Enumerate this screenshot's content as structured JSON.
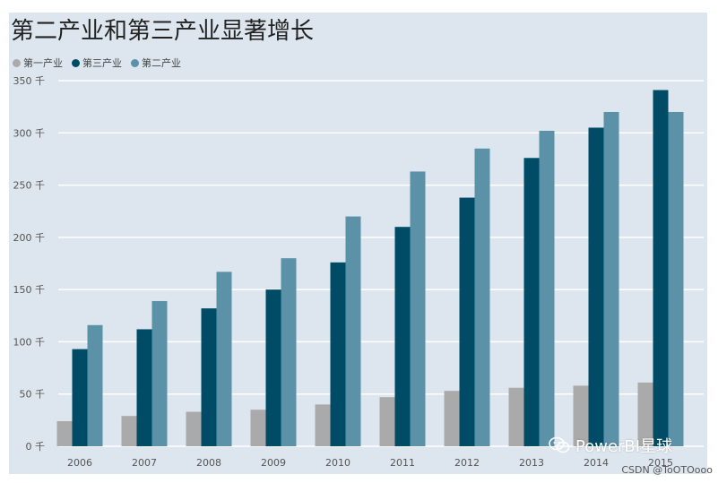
{
  "chart_data": {
    "type": "bar",
    "title": "第二产业和第三产业显著增长",
    "categories": [
      "2006",
      "2007",
      "2008",
      "2009",
      "2010",
      "2011",
      "2012",
      "2013",
      "2014",
      "2015"
    ],
    "series": [
      {
        "name": "第一产业",
        "color": "#aaaaaa",
        "values": [
          24,
          29,
          33,
          35,
          40,
          47,
          53,
          56,
          58,
          61
        ]
      },
      {
        "name": "第三产业",
        "color": "#004c66",
        "values": [
          93,
          112,
          132,
          150,
          176,
          210,
          238,
          276,
          305,
          341
        ]
      },
      {
        "name": "第二产业",
        "color": "#5b92a8",
        "values": [
          116,
          139,
          167,
          180,
          220,
          263,
          285,
          302,
          320,
          320
        ]
      }
    ],
    "yticks": [
      "0 千",
      "50 千",
      "100 千",
      "150 千",
      "200 千",
      "250 千",
      "300 千",
      "350 千"
    ],
    "ytick_values": [
      0,
      50,
      100,
      150,
      200,
      250,
      300,
      350
    ],
    "ylim": [
      0,
      350
    ],
    "grid": true,
    "legend": "top-left"
  },
  "watermark": {
    "text": "PowerBI星球",
    "icon": "wechat-icon"
  },
  "credit": "CSDN @ToOTOooo"
}
